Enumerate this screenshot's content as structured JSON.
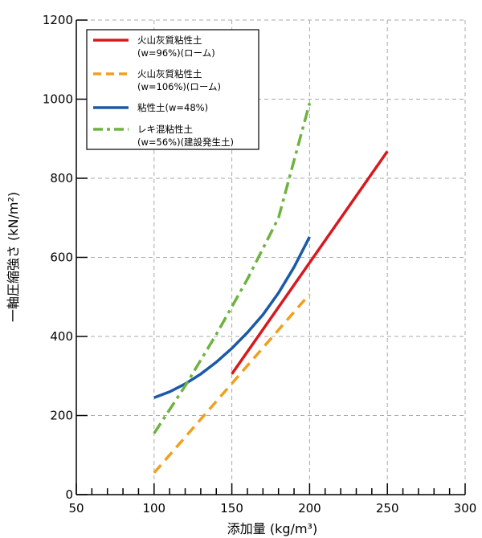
{
  "chart_data": {
    "type": "line",
    "title": "",
    "xlabel": "添加量 (kg/m³)",
    "ylabel": "一軸圧縮強さ (kN/m²)",
    "xlim": [
      50,
      300
    ],
    "ylim": [
      0,
      1200
    ],
    "xticks": [
      50,
      100,
      150,
      200,
      250,
      300
    ],
    "yticks": [
      0,
      200,
      400,
      600,
      800,
      1000,
      1200
    ],
    "grid": true,
    "legend_position": "top-left",
    "series": [
      {
        "name": [
          "火山灰質粘性土",
          "(w=96%)(ローム)"
        ],
        "color": "#d7191f",
        "style": "solid",
        "points": [
          [
            150,
            305
          ],
          [
            250,
            868
          ]
        ]
      },
      {
        "name": [
          "火山灰質粘性土",
          "(w=106%)(ローム)"
        ],
        "color": "#f0a01e",
        "style": "dashed",
        "points": [
          [
            100,
            55
          ],
          [
            200,
            507
          ]
        ]
      },
      {
        "name": [
          "粘性土(w=48%)"
        ],
        "color": "#1a5aa6",
        "style": "solid",
        "points": [
          [
            100,
            245
          ],
          [
            110,
            260
          ],
          [
            120,
            280
          ],
          [
            130,
            305
          ],
          [
            140,
            335
          ],
          [
            150,
            370
          ],
          [
            160,
            410
          ],
          [
            170,
            455
          ],
          [
            180,
            510
          ],
          [
            190,
            575
          ],
          [
            200,
            652
          ]
        ]
      },
      {
        "name": [
          "レキ混粘性土",
          "(w=56%)(建設発生土)"
        ],
        "color": "#6db33f",
        "style": "dashdot",
        "points": [
          [
            100,
            155
          ],
          [
            120,
            275
          ],
          [
            140,
            405
          ],
          [
            160,
            545
          ],
          [
            180,
            700
          ],
          [
            200,
            990
          ]
        ]
      }
    ]
  }
}
